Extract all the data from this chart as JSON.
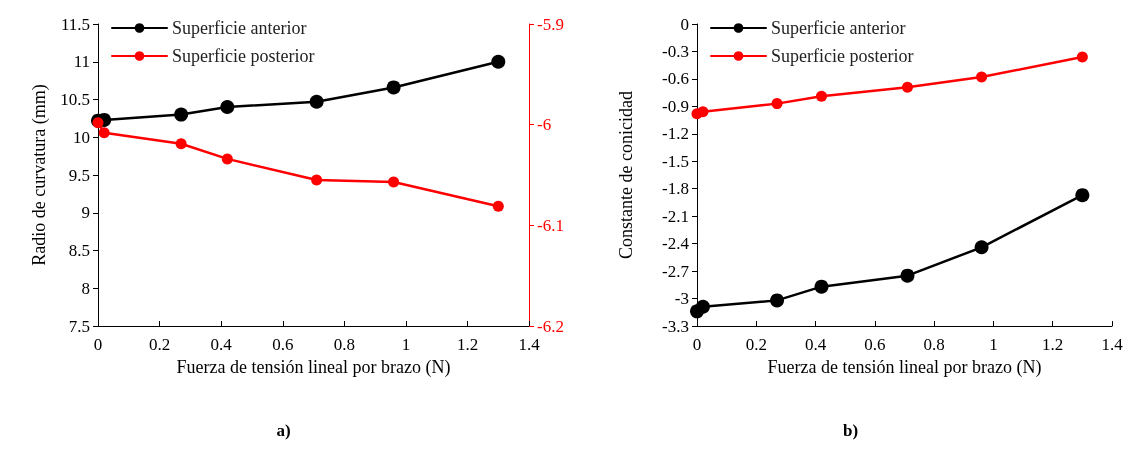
{
  "chart_data": [
    {
      "type": "line",
      "xlabel": "Fuerza de tensión lineal por brazo (N)",
      "ylabel": "Radio de curvatura (mm)",
      "x": [
        0,
        0.02,
        0.27,
        0.42,
        0.71,
        0.96,
        1.3
      ],
      "xlim": [
        0,
        1.4
      ],
      "xticks": [
        0,
        0.2,
        0.4,
        0.6,
        0.8,
        1,
        1.2,
        1.4
      ],
      "ylim": [
        7.5,
        11.5
      ],
      "yticks": [
        7.5,
        8,
        8.5,
        9,
        9.5,
        10,
        10.5,
        11,
        11.5
      ],
      "y2lim": [
        -6.2,
        -5.9
      ],
      "y2ticks": [
        -6.2,
        -6.1,
        -6,
        -5.9
      ],
      "legend": "top left",
      "marker": "circle",
      "line_style": "solid",
      "grid": false,
      "annotations": [
        "a)"
      ],
      "series": [
        {
          "name": "Superficie anterior",
          "color": "#000000",
          "values": [
            10.22,
            10.23,
            10.3,
            10.4,
            10.47,
            10.66,
            11.0
          ]
        },
        {
          "name": "Superficie posterior",
          "color": "#ff0000",
          "axis": "y2",
          "values": [
            -5.998,
            -6.008,
            -6.019,
            -6.034,
            -6.055,
            -6.057,
            -6.081
          ]
        }
      ]
    },
    {
      "type": "line",
      "xlabel": "Fuerza de tensión lineal por brazo (N)",
      "ylabel": "Constante de conicidad",
      "x": [
        0,
        0.02,
        0.27,
        0.42,
        0.71,
        0.96,
        1.3
      ],
      "xlim": [
        0,
        1.4
      ],
      "xticks": [
        0,
        0.2,
        0.4,
        0.6,
        0.8,
        1,
        1.2,
        1.4
      ],
      "ylim": [
        -3.3,
        0
      ],
      "yticks": [
        -3.3,
        -3,
        -2.7,
        -2.4,
        -2.1,
        -1.8,
        -1.5,
        -1.2,
        -0.9,
        -0.6,
        -0.3,
        0
      ],
      "legend": "top left",
      "marker": "circle",
      "line_style": "solid",
      "grid": false,
      "annotations": [
        "b)"
      ],
      "series": [
        {
          "name": "Superficie anterior",
          "color": "#000000",
          "values": [
            -3.14,
            -3.09,
            -3.02,
            -2.87,
            -2.75,
            -2.44,
            -1.87
          ]
        },
        {
          "name": "Superficie posterior",
          "color": "#ff0000",
          "values": [
            -0.98,
            -0.96,
            -0.87,
            -0.79,
            -0.69,
            -0.58,
            -0.36
          ]
        }
      ]
    }
  ]
}
